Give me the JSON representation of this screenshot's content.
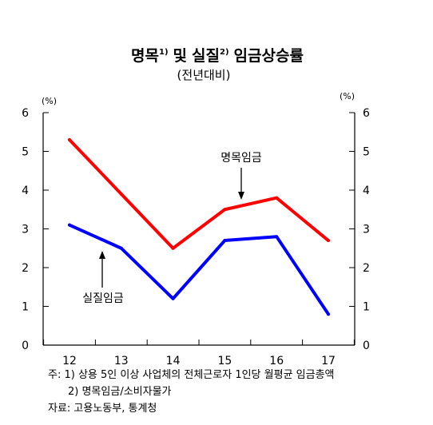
{
  "chart_data": {
    "type": "line",
    "title": "명목 및 실질 임금상승률",
    "title_parts": {
      "w1": "명목",
      "s1": "1)",
      "w2": "및",
      "w3": "실질",
      "s2": "2)",
      "w4": "임금상승률"
    },
    "subtitle": "(전년대비)",
    "unit_left": "(%)",
    "unit_right": "(%)",
    "x": [
      "12",
      "13",
      "14",
      "15",
      "16",
      "17"
    ],
    "ylim": [
      0,
      6
    ],
    "yticks": [
      "0",
      "1",
      "2",
      "3",
      "4",
      "5",
      "6"
    ],
    "grid": false,
    "series": [
      {
        "name": "명목임금",
        "color": "#ff0000",
        "values": [
          5.3,
          3.9,
          2.5,
          3.5,
          3.8,
          2.7
        ]
      },
      {
        "name": "실질임금",
        "color": "#0000ff",
        "values": [
          3.1,
          2.5,
          1.2,
          2.7,
          2.8,
          0.8
        ]
      }
    ]
  },
  "notes": {
    "line1": "주: 1) 상용 5인 이상 사업체의 전체근로자 1인당 월평균 임금총액",
    "line2": "2) 명목임금/소비자물가",
    "source": "자료: 고용노동부, 통계청"
  }
}
